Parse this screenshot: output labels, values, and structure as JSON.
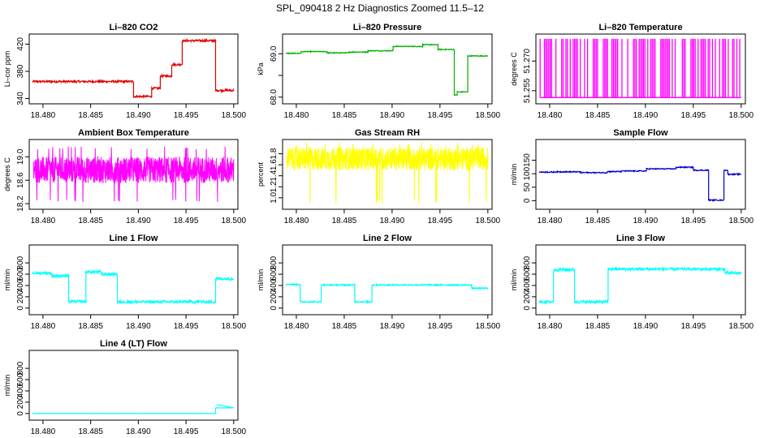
{
  "figure_title": "SPL_090418  2 Hz Diagnostics Zoomed 11.5–12",
  "chart_data": [
    {
      "type": "line",
      "title": "Li–820 CO2",
      "ylabel": "Li–cor ppm",
      "color": "#e00000",
      "xlim": [
        18.4789,
        18.5001
      ],
      "ylim": [
        337,
        430
      ],
      "yticks": [
        340,
        380,
        420
      ],
      "xticks": [
        18.48,
        18.485,
        18.49,
        18.495,
        18.5
      ],
      "xtick_labels": [
        "18.480",
        "18.485",
        "18.490",
        "18.495",
        "18.500"
      ],
      "segments": [
        [
          18.4789,
          18.4895,
          365
        ],
        [
          18.4895,
          18.4905,
          343
        ],
        [
          18.4905,
          18.4914,
          343
        ],
        [
          18.4914,
          18.4923,
          355
        ],
        [
          18.4923,
          18.4935,
          373
        ],
        [
          18.4935,
          18.4946,
          390
        ],
        [
          18.4946,
          18.4981,
          425
        ],
        [
          18.4981,
          18.5,
          352
        ]
      ],
      "noise": 1.5
    },
    {
      "type": "line",
      "title": "Li–820 Pressure",
      "ylabel": "kPa",
      "color": "#00b000",
      "xlim": [
        18.4789,
        18.5001
      ],
      "ylim": [
        67.92,
        69.38
      ],
      "yticks": [
        68.0,
        68.5,
        69.0
      ],
      "ytick_labels": [
        "68.0",
        "",
        "69.0"
      ],
      "xticks": [
        18.48,
        18.485,
        18.49,
        18.495,
        18.5
      ],
      "xtick_labels": [
        "18.480",
        "18.485",
        "18.490",
        "18.495",
        "18.500"
      ],
      "segments": [
        [
          18.4789,
          18.4805,
          69.01
        ],
        [
          18.4805,
          18.4832,
          69.05
        ],
        [
          18.4832,
          18.4855,
          69.02
        ],
        [
          18.4855,
          18.4875,
          69.04
        ],
        [
          18.4875,
          18.4901,
          69.07
        ],
        [
          18.4901,
          18.4932,
          69.17
        ],
        [
          18.4932,
          18.4948,
          69.21
        ],
        [
          18.4948,
          18.4965,
          69.1
        ],
        [
          18.4965,
          18.4968,
          68.05
        ],
        [
          18.4968,
          18.4979,
          68.12
        ],
        [
          18.4979,
          18.5,
          68.95
        ]
      ],
      "noise": 0.01
    },
    {
      "type": "line",
      "title": "Li–820 Temperature",
      "ylabel": "degrees C",
      "color": "#ff00ff",
      "xlim": [
        18.4789,
        18.5001
      ],
      "ylim": [
        51.25,
        51.282
      ],
      "yticks": [
        51.255,
        51.27
      ],
      "ytick_labels": [
        "51.255",
        "51.270"
      ],
      "xticks": [
        18.48,
        18.485,
        18.49,
        18.495,
        18.5
      ],
      "xtick_labels": [
        "18.480",
        "18.485",
        "18.490",
        "18.495",
        "18.500"
      ],
      "levels": [
        51.2515,
        51.2812
      ],
      "style": "binary"
    },
    {
      "type": "line",
      "title": "Ambient Box Temperature",
      "ylabel": "degrees C",
      "color": "#ff00ff",
      "xlim": [
        18.4789,
        18.5001
      ],
      "ylim": [
        18.16,
        19.24
      ],
      "yticks": [
        18.2,
        18.6,
        19.0
      ],
      "ytick_labels": [
        "18.2",
        "18.6",
        "19.0"
      ],
      "xticks": [
        18.48,
        18.485,
        18.49,
        18.495,
        18.5
      ],
      "xtick_labels": [
        "18.480",
        "18.485",
        "18.490",
        "18.495",
        "18.500"
      ],
      "band": [
        18.55,
        19.0
      ],
      "spikes": [
        18.25,
        19.15
      ],
      "style": "noise"
    },
    {
      "type": "line",
      "title": "Gas Stream RH",
      "ylabel": "percent",
      "color": "#ffff00",
      "xlim": [
        18.4789,
        18.5001
      ],
      "ylim": [
        0.85,
        2.0
      ],
      "yticks": [
        1.0,
        1.2,
        1.4,
        1.6,
        1.8
      ],
      "ytick_labels": [
        "1.0",
        "1.2",
        "1.4",
        "1.6",
        "1.8"
      ],
      "xticks": [
        18.48,
        18.485,
        18.49,
        18.495,
        18.5
      ],
      "xtick_labels": [
        "18.480",
        "18.485",
        "18.490",
        "18.495",
        "18.500"
      ],
      "band": [
        1.5,
        1.92
      ],
      "spikes": [
        0.92,
        1.98
      ],
      "style": "noise"
    },
    {
      "type": "line",
      "title": "Sample Flow",
      "ylabel": "ml/min",
      "color": "#0000cc",
      "xlim": [
        18.4789,
        18.5001
      ],
      "ylim": [
        -20,
        215
      ],
      "yticks": [
        0,
        50,
        100,
        150
      ],
      "ytick_labels": [
        "0",
        "50",
        "100",
        "150"
      ],
      "xticks": [
        18.48,
        18.485,
        18.49,
        18.495,
        18.5
      ],
      "xtick_labels": [
        "18.480",
        "18.485",
        "18.490",
        "18.495",
        "18.500"
      ],
      "segments": [
        [
          18.4789,
          18.4805,
          106
        ],
        [
          18.4805,
          18.4832,
          107
        ],
        [
          18.4832,
          18.486,
          104
        ],
        [
          18.486,
          18.4875,
          108
        ],
        [
          18.4875,
          18.4901,
          110
        ],
        [
          18.4901,
          18.4932,
          118
        ],
        [
          18.4932,
          18.495,
          124
        ],
        [
          18.495,
          18.4966,
          113
        ],
        [
          18.4966,
          18.4982,
          2
        ],
        [
          18.4982,
          18.4986,
          113
        ],
        [
          18.4986,
          18.5,
          98
        ]
      ],
      "noise": 2
    },
    {
      "type": "line",
      "title": "Line 1 Flow",
      "ylabel": "ml/min",
      "color": "#00ffff",
      "xlim": [
        18.4789,
        18.5001
      ],
      "ylim": [
        -60,
        1060
      ],
      "yticks": [
        0,
        200,
        400,
        600,
        800
      ],
      "ytick_labels": [
        "0",
        "200",
        "400",
        "600",
        "800"
      ],
      "xticks": [
        18.48,
        18.485,
        18.49,
        18.495,
        18.5
      ],
      "xtick_labels": [
        "18.480",
        "18.485",
        "18.490",
        "18.495",
        "18.500"
      ],
      "segments": [
        [
          18.4789,
          18.4809,
          620
        ],
        [
          18.4809,
          18.4827,
          570
        ],
        [
          18.4827,
          18.4845,
          115
        ],
        [
          18.4845,
          18.4861,
          640
        ],
        [
          18.4861,
          18.4878,
          600
        ],
        [
          18.4878,
          18.4981,
          110
        ],
        [
          18.4981,
          18.5,
          520
        ]
      ],
      "noise": 25
    },
    {
      "type": "line",
      "title": "Line 2 Flow",
      "ylabel": "ml/min",
      "color": "#00ffff",
      "xlim": [
        18.4789,
        18.5001
      ],
      "ylim": [
        -60,
        1060
      ],
      "yticks": [
        0,
        200,
        400,
        600,
        800
      ],
      "ytick_labels": [
        "0",
        "200",
        "400",
        "600",
        "800"
      ],
      "xticks": [
        18.48,
        18.485,
        18.49,
        18.495,
        18.5
      ],
      "xtick_labels": [
        "18.480",
        "18.485",
        "18.490",
        "18.495",
        "18.500"
      ],
      "segments": [
        [
          18.4789,
          18.4804,
          420
        ],
        [
          18.4804,
          18.4826,
          110
        ],
        [
          18.4826,
          18.4861,
          410
        ],
        [
          18.4861,
          18.4879,
          110
        ],
        [
          18.4879,
          18.4983,
          410
        ],
        [
          18.4983,
          18.5,
          350
        ]
      ],
      "noise": 12
    },
    {
      "type": "line",
      "title": "Line 3 Flow",
      "ylabel": "ml/min",
      "color": "#00ffff",
      "xlim": [
        18.4789,
        18.5001
      ],
      "ylim": [
        -60,
        1060
      ],
      "yticks": [
        0,
        200,
        400,
        600,
        800
      ],
      "ytick_labels": [
        "0",
        "200",
        "400",
        "600",
        "800"
      ],
      "xticks": [
        18.48,
        18.485,
        18.49,
        18.495,
        18.5
      ],
      "xtick_labels": [
        "18.480",
        "18.485",
        "18.490",
        "18.495",
        "18.500"
      ],
      "segments": [
        [
          18.4789,
          18.4804,
          110
        ],
        [
          18.4804,
          18.4826,
          680
        ],
        [
          18.4826,
          18.4861,
          110
        ],
        [
          18.4861,
          18.4983,
          690
        ],
        [
          18.4983,
          18.5,
          620
        ]
      ],
      "noise": 25
    },
    {
      "type": "line",
      "title": "Line 4 (LT) Flow",
      "ylabel": "ml/min",
      "color": "#00ffff",
      "xlim": [
        18.4789,
        18.5001
      ],
      "ylim": [
        -60,
        1060
      ],
      "yticks": [
        0,
        200,
        400,
        600,
        800
      ],
      "ytick_labels": [
        "0",
        "200",
        "400",
        "600",
        "800"
      ],
      "xticks": [
        18.48,
        18.485,
        18.49,
        18.495,
        18.5
      ],
      "xtick_labels": [
        "18.480",
        "18.485",
        "18.490",
        "18.495",
        "18.500"
      ],
      "segments": [
        [
          18.4789,
          18.4981,
          0
        ],
        [
          18.4981,
          18.5,
          100
        ]
      ],
      "noise": 2,
      "spike": [
        18.4982,
        160
      ]
    }
  ]
}
